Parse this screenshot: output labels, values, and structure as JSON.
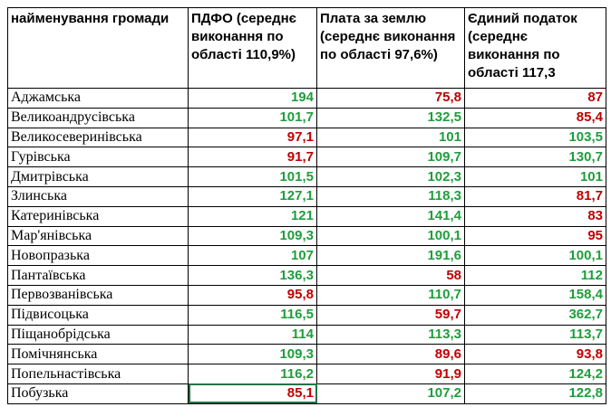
{
  "table": {
    "header": [
      "найменування громади",
      "ПДФО (середнє виконання по області 110,9%)",
      "Плата за землю (середнє виконання по області 97,6%)",
      "Єдиний податок (середнє виконання по області 117,3"
    ],
    "rows": [
      [
        "Аджамська",
        "194",
        "75,8",
        "87"
      ],
      [
        "Великоандрусівська",
        "101,7",
        "132,5",
        "85,4"
      ],
      [
        "Великосеверинівська",
        "97,1",
        "101",
        "103,5"
      ],
      [
        "Гурівська",
        "91,7",
        "109,7",
        "130,7"
      ],
      [
        "Дмитрівська",
        "101,5",
        "102,3",
        "101"
      ],
      [
        "Злинська",
        "127,1",
        "118,3",
        "81,7"
      ],
      [
        "Катеринівська",
        "121",
        "141,4",
        "83"
      ],
      [
        "Мар'янівська",
        "109,3",
        "100,1",
        "95"
      ],
      [
        "Новопразька",
        "107",
        "191,6",
        "100,1"
      ],
      [
        "Пантаївська",
        "136,3",
        "58",
        "112"
      ],
      [
        "Первозванівська",
        "95,8",
        "110,7",
        "158,4"
      ],
      [
        "Підвисоцька",
        "116,5",
        "59,7",
        "362,7"
      ],
      [
        "Піщанобрідська",
        "114",
        "113,3",
        "113,7"
      ],
      [
        "Помічнянська",
        "109,3",
        "89,6",
        "93,8"
      ],
      [
        "Попельнастівська",
        "116,2",
        "91,9",
        "124,2"
      ],
      [
        "Побузька",
        "85,1",
        "107,2",
        "122,8"
      ]
    ],
    "cell_colors": [
      [
        "#1e9e3c",
        "#c00000",
        "#c00000"
      ],
      [
        "#1e9e3c",
        "#1e9e3c",
        "#c00000"
      ],
      [
        "#c00000",
        "#1e9e3c",
        "#1e9e3c"
      ],
      [
        "#c00000",
        "#1e9e3c",
        "#1e9e3c"
      ],
      [
        "#1e9e3c",
        "#1e9e3c",
        "#1e9e3c"
      ],
      [
        "#1e9e3c",
        "#1e9e3c",
        "#c00000"
      ],
      [
        "#1e9e3c",
        "#1e9e3c",
        "#c00000"
      ],
      [
        "#1e9e3c",
        "#1e9e3c",
        "#c00000"
      ],
      [
        "#1e9e3c",
        "#1e9e3c",
        "#1e9e3c"
      ],
      [
        "#1e9e3c",
        "#c00000",
        "#1e9e3c"
      ],
      [
        "#c00000",
        "#1e9e3c",
        "#1e9e3c"
      ],
      [
        "#1e9e3c",
        "#c00000",
        "#1e9e3c"
      ],
      [
        "#1e9e3c",
        "#1e9e3c",
        "#1e9e3c"
      ],
      [
        "#1e9e3c",
        "#c00000",
        "#c00000"
      ],
      [
        "#1e9e3c",
        "#c00000",
        "#1e9e3c"
      ],
      [
        "#c00000",
        "#1e9e3c",
        "#1e9e3c"
      ]
    ]
  }
}
